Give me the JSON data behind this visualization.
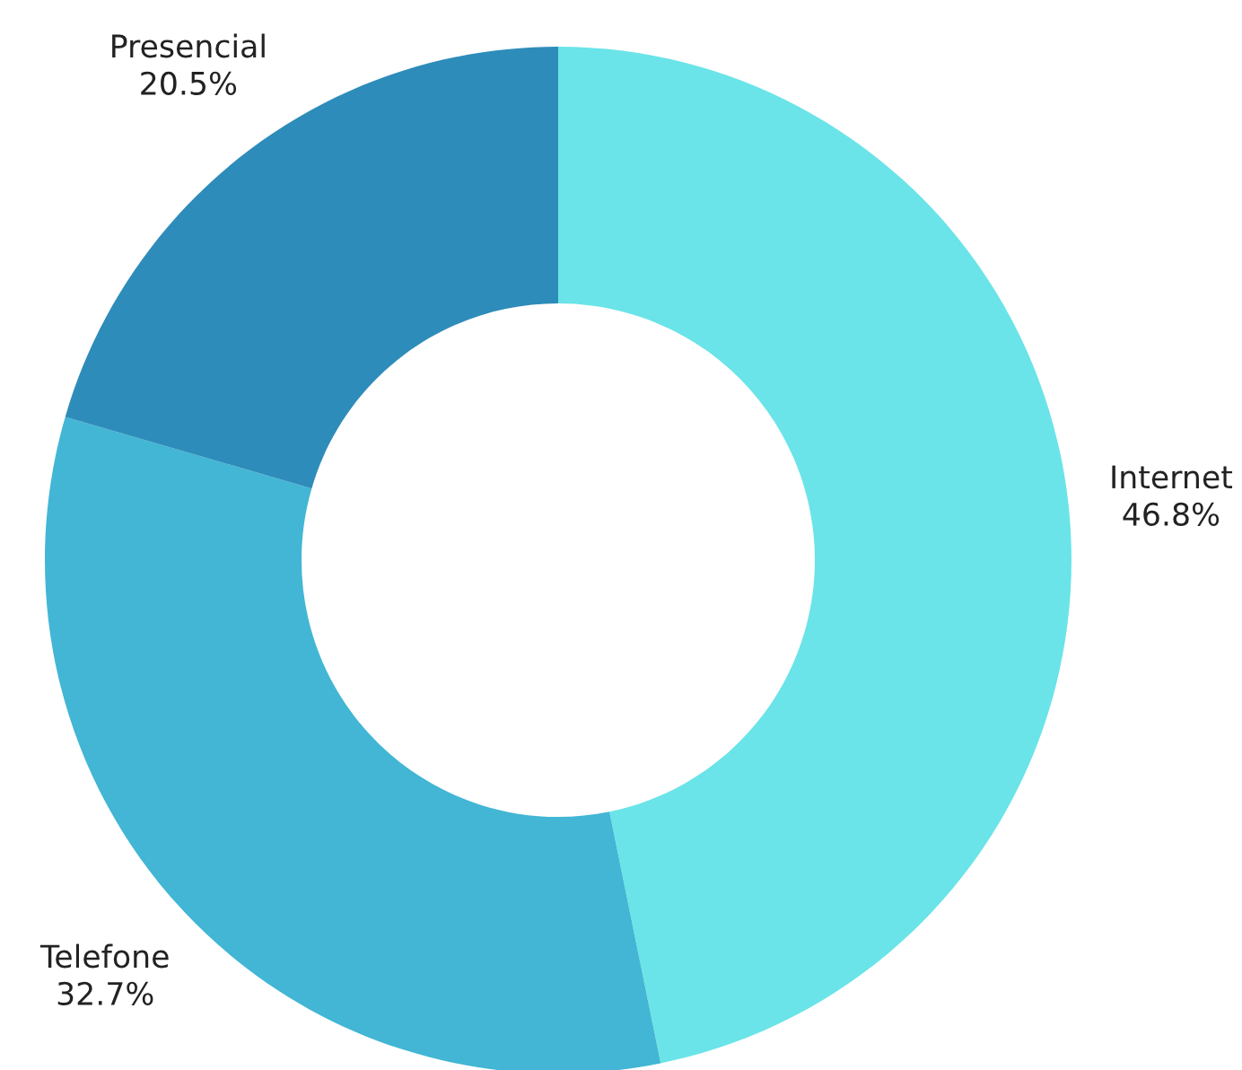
{
  "chart_data": {
    "type": "donut",
    "categories": [
      "Internet",
      "Telefone",
      "Presencial"
    ],
    "values": [
      46.8,
      32.7,
      20.5
    ],
    "value_labels": [
      "46.8%",
      "32.7%",
      "20.5%"
    ],
    "colors": [
      "#6ae4e8",
      "#42b6d4",
      "#2e8cba"
    ],
    "legend": false
  }
}
